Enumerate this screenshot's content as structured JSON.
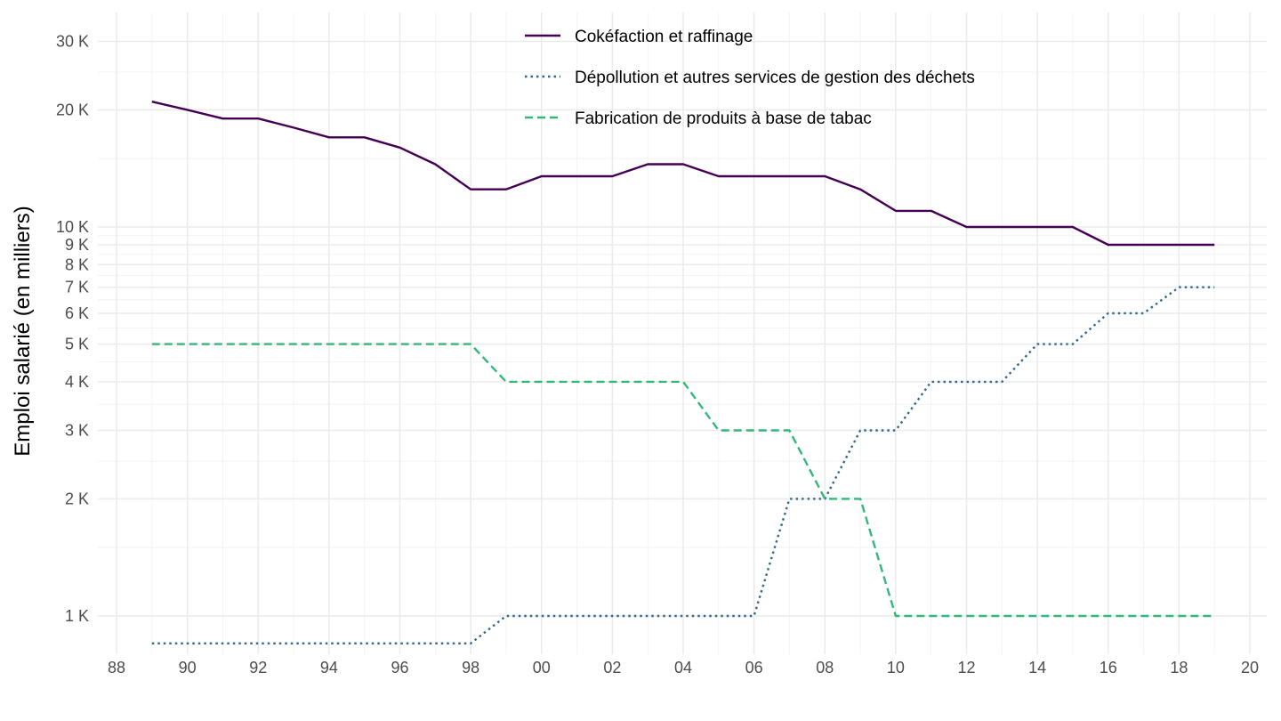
{
  "chart_data": {
    "type": "line",
    "title": "",
    "xlabel": "",
    "ylabel": "Emploi salarié (en milliers)",
    "y_scale": "log",
    "ylim": [
      800,
      34000
    ],
    "xlim": [
      1987.5,
      2020.4
    ],
    "grid": true,
    "legend_position": "top-center",
    "x_ticks": [
      {
        "year": 1988,
        "label": "88"
      },
      {
        "year": 1990,
        "label": "90"
      },
      {
        "year": 1992,
        "label": "92"
      },
      {
        "year": 1994,
        "label": "94"
      },
      {
        "year": 1996,
        "label": "96"
      },
      {
        "year": 1998,
        "label": "98"
      },
      {
        "year": 2000,
        "label": "00"
      },
      {
        "year": 2002,
        "label": "02"
      },
      {
        "year": 2004,
        "label": "04"
      },
      {
        "year": 2006,
        "label": "06"
      },
      {
        "year": 2008,
        "label": "08"
      },
      {
        "year": 2010,
        "label": "10"
      },
      {
        "year": 2012,
        "label": "12"
      },
      {
        "year": 2014,
        "label": "14"
      },
      {
        "year": 2016,
        "label": "16"
      },
      {
        "year": 2018,
        "label": "18"
      },
      {
        "year": 2020,
        "label": "20"
      }
    ],
    "y_ticks": [
      {
        "value": 1000,
        "label": "1 K"
      },
      {
        "value": 2000,
        "label": "2 K"
      },
      {
        "value": 3000,
        "label": "3 K"
      },
      {
        "value": 4000,
        "label": "4 K"
      },
      {
        "value": 5000,
        "label": "5 K"
      },
      {
        "value": 6000,
        "label": "6 K"
      },
      {
        "value": 7000,
        "label": "7 K"
      },
      {
        "value": 8000,
        "label": "8 K"
      },
      {
        "value": 9000,
        "label": "9 K"
      },
      {
        "value": 10000,
        "label": "10 K"
      },
      {
        "value": 20000,
        "label": "20 K"
      },
      {
        "value": 30000,
        "label": "30 K"
      }
    ],
    "x": [
      1989,
      1990,
      1991,
      1992,
      1993,
      1994,
      1995,
      1996,
      1997,
      1998,
      1999,
      2000,
      2001,
      2002,
      2003,
      2004,
      2005,
      2006,
      2007,
      2008,
      2009,
      2010,
      2011,
      2012,
      2013,
      2014,
      2015,
      2016,
      2017,
      2018,
      2019
    ],
    "series": [
      {
        "name": "Cokéfaction et raffinage",
        "color": "#440154",
        "dash": "solid",
        "values": [
          21000,
          20000,
          19000,
          19000,
          18000,
          17000,
          17000,
          16000,
          14500,
          12500,
          12500,
          13500,
          13500,
          13500,
          14500,
          14500,
          13500,
          13500,
          13500,
          13500,
          12500,
          11000,
          11000,
          10000,
          10000,
          10000,
          10000,
          9000,
          9000,
          9000,
          9000
        ]
      },
      {
        "name": "Dépollution et autres services de gestion des déchets",
        "color": "#31688e",
        "dash": "dotted",
        "values": [
          850,
          850,
          850,
          850,
          850,
          850,
          850,
          850,
          850,
          850,
          1000,
          1000,
          1000,
          1000,
          1000,
          1000,
          1000,
          1000,
          2000,
          2000,
          3000,
          3000,
          4000,
          4000,
          4000,
          5000,
          5000,
          6000,
          6000,
          7000,
          7000
        ]
      },
      {
        "name": "Fabrication de produits à base de tabac",
        "color": "#35b779",
        "dash": "dashed",
        "values": [
          5000,
          5000,
          5000,
          5000,
          5000,
          5000,
          5000,
          5000,
          5000,
          5000,
          4000,
          4000,
          4000,
          4000,
          4000,
          4000,
          3000,
          3000,
          3000,
          2000,
          2000,
          1000,
          1000,
          1000,
          1000,
          1000,
          1000,
          1000,
          1000,
          1000,
          1000
        ]
      }
    ]
  }
}
